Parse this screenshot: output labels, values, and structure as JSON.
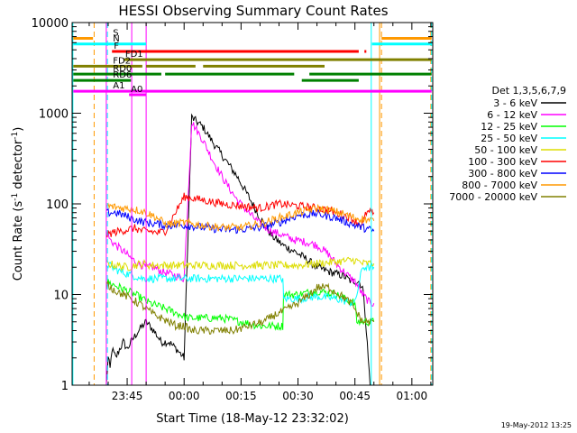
{
  "chart_data": {
    "type": "line",
    "title": "HESSI Observing Summary Count Rates",
    "xlabel": "Start Time (18-May-12 23:32:02)",
    "ylabel": "Count Rate (s⁻¹ detector⁻¹)",
    "ylabel_main": "Count Rate (s",
    "ylabel_exp1": "-1",
    "ylabel_mid": " detector",
    "ylabel_exp2": "-1",
    "ylabel_end": ")",
    "yscale": "log",
    "ylim": [
      1,
      10000
    ],
    "xlim": [
      -14.5,
      80.5
    ],
    "x_units": "minutes relative to 23:45 (18-May-12)",
    "x_ticks": [
      {
        "v": 0,
        "label": "23:45"
      },
      {
        "v": 15,
        "label": "00:00"
      },
      {
        "v": 30,
        "label": "00:15"
      },
      {
        "v": 45,
        "label": "00:30"
      },
      {
        "v": 60,
        "label": "00:45"
      },
      {
        "v": 75,
        "label": "01:00"
      }
    ],
    "y_ticks": [
      {
        "v": 1,
        "label": "1"
      },
      {
        "v": 10,
        "label": "10"
      },
      {
        "v": 100,
        "label": "100"
      },
      {
        "v": 1000,
        "label": "1000"
      },
      {
        "v": 10000,
        "label": "10000"
      }
    ],
    "legend": {
      "title": "Det 1,3,5,6,7,9",
      "placement": "right"
    },
    "series": [
      {
        "name": "3 - 6 keV",
        "color": "#000000",
        "x": [
          -5.5,
          -5,
          -4.5,
          -4,
          -3,
          -2,
          -1,
          0,
          1,
          3,
          5,
          7,
          9,
          11,
          13,
          15,
          17,
          20,
          23,
          26,
          29,
          32,
          35,
          38,
          41,
          44,
          47,
          50,
          53,
          55,
          57,
          58,
          59,
          60,
          61,
          62,
          62.5,
          63,
          63.5,
          64
        ],
        "y": [
          1,
          2,
          1.5,
          2.5,
          2,
          2.5,
          3,
          2.5,
          3,
          4,
          5,
          4,
          3,
          3,
          2.5,
          2,
          900,
          700,
          450,
          300,
          200,
          120,
          70,
          45,
          35,
          30,
          25,
          20,
          18,
          17,
          16,
          15,
          14,
          14,
          14,
          12,
          8,
          4,
          2,
          1
        ]
      },
      {
        "name": "6 - 12 keV",
        "color": "#ff00ff",
        "x": [
          -5.5,
          -5,
          -4.5,
          -3,
          -1,
          1,
          3,
          5,
          7,
          9,
          11,
          13,
          15,
          17,
          20,
          23,
          26,
          29,
          32,
          35,
          38,
          41,
          44,
          47,
          50,
          53,
          55,
          57,
          59,
          60,
          61,
          62,
          63,
          64,
          65
        ],
        "y": [
          50,
          45,
          40,
          35,
          30,
          25,
          22,
          20,
          20,
          18,
          17,
          16,
          15,
          800,
          500,
          280,
          170,
          110,
          80,
          60,
          50,
          45,
          40,
          38,
          35,
          28,
          22,
          18,
          15,
          14,
          12,
          10,
          9,
          8,
          8
        ]
      },
      {
        "name": "12 - 25 keV",
        "color": "#00ff00",
        "x": [
          -5.5,
          -4,
          -2,
          0,
          2,
          4,
          6,
          8,
          10,
          12,
          14,
          16,
          20,
          25,
          30,
          35,
          39,
          41,
          41.2,
          45,
          50,
          55,
          60,
          60.5,
          61,
          63,
          65
        ],
        "y": [
          14,
          13,
          12,
          11,
          10,
          9,
          8,
          7.5,
          7,
          6.5,
          6,
          5.5,
          5.5,
          5.5,
          5,
          4.5,
          4.5,
          4.5,
          10,
          10,
          11,
          10,
          8,
          5,
          5,
          5,
          5
        ]
      },
      {
        "name": "25 - 50 keV",
        "color": "#00ffff",
        "x": [
          -5.5,
          -4,
          -2,
          0,
          2,
          4,
          6,
          10,
          15,
          20,
          25,
          30,
          35,
          39,
          41,
          41.2,
          45,
          50,
          55,
          60,
          62,
          65
        ],
        "y": [
          22,
          20,
          18,
          17,
          16,
          15,
          15,
          15,
          15,
          15,
          15,
          15,
          15,
          15,
          15,
          9,
          9,
          9.5,
          9,
          8,
          20,
          20
        ]
      },
      {
        "name": "50 - 100 keV",
        "color": "#dddd00",
        "x": [
          -5.5,
          -3,
          0,
          2,
          4,
          6,
          8,
          10,
          15,
          20,
          25,
          30,
          35,
          39,
          41,
          45,
          50,
          55,
          60,
          62,
          65
        ],
        "y": [
          22,
          21,
          20,
          21,
          22,
          21,
          21,
          21,
          21,
          21,
          21,
          21,
          21,
          21,
          21,
          21,
          22,
          23,
          24,
          22,
          22
        ]
      },
      {
        "name": "100 - 300 keV",
        "color": "#ff0000",
        "x": [
          -5.5,
          -4,
          -2,
          0,
          2,
          4,
          6,
          8,
          10,
          15,
          20,
          25,
          30,
          35,
          40,
          45,
          50,
          53,
          55,
          57,
          59,
          60,
          61,
          62,
          63,
          65
        ],
        "y": [
          45,
          48,
          50,
          52,
          54,
          50,
          50,
          48,
          50,
          120,
          110,
          100,
          95,
          90,
          100,
          95,
          90,
          85,
          80,
          75,
          70,
          65,
          60,
          60,
          80,
          80
        ]
      },
      {
        "name": "300 - 800 keV",
        "color": "#0000ff",
        "x": [
          -5.5,
          -3,
          -1,
          1,
          3,
          5,
          8,
          10,
          15,
          20,
          25,
          30,
          35,
          40,
          45,
          50,
          55,
          60,
          62,
          65
        ],
        "y": [
          80,
          80,
          75,
          70,
          65,
          62,
          60,
          58,
          58,
          55,
          52,
          52,
          55,
          62,
          75,
          78,
          70,
          58,
          55,
          50
        ]
      },
      {
        "name": "800 - 7000 keV",
        "color": "#ff9900",
        "x": [
          -5.5,
          -3,
          -1,
          1,
          3,
          5,
          8,
          10,
          12,
          15,
          20,
          25,
          30,
          35,
          40,
          45,
          50,
          55,
          58,
          60,
          62,
          65
        ],
        "y": [
          95,
          92,
          90,
          88,
          85,
          80,
          70,
          60,
          60,
          62,
          58,
          55,
          55,
          60,
          70,
          80,
          90,
          82,
          75,
          70,
          68,
          65
        ]
      },
      {
        "name": "7000 - 20000 keV",
        "color": "#808000",
        "x": [
          -5.5,
          -3,
          -1,
          1,
          3,
          5,
          7,
          9,
          11,
          13,
          15,
          17,
          20,
          24,
          28,
          32,
          36,
          39,
          41,
          45,
          48,
          50,
          53,
          56,
          59,
          62,
          65
        ],
        "y": [
          13,
          11,
          10,
          9,
          8,
          7,
          6,
          5.5,
          5,
          4.5,
          4.5,
          4,
          4,
          4,
          4,
          4.5,
          5,
          6,
          6.5,
          8,
          10,
          12,
          12,
          10,
          8,
          5,
          5
        ]
      }
    ],
    "flags": [
      {
        "label": "S",
        "color": "#ff9900",
        "y": 6700,
        "segments": [
          [
            -14.2,
            -9
          ],
          [
            67,
            80.2
          ]
        ]
      },
      {
        "label": "N",
        "color": "#00ffff",
        "y": 5800,
        "segments": [
          [
            -14.2,
            5
          ],
          [
            64.5,
            80.2
          ]
        ]
      },
      {
        "label": "F",
        "color": "#ff0000",
        "y": 4800,
        "segments": [
          [
            -4,
            61
          ],
          [
            62.5,
            63
          ]
        ]
      },
      {
        "label": "FD1",
        "color": "#808000",
        "y": 3900,
        "segments": [
          [
            -1,
            80.2
          ]
        ]
      },
      {
        "label": "FD2",
        "color": "#808000",
        "y": 3300,
        "segments": [
          [
            -14.2,
            4
          ],
          [
            5,
            18
          ],
          [
            20,
            52
          ]
        ]
      },
      {
        "label": "RD0",
        "color": "#008000",
        "y": 2700,
        "segments": [
          [
            -14.2,
            9
          ],
          [
            10,
            44
          ],
          [
            48,
            80.2
          ]
        ]
      },
      {
        "label": "RD6",
        "color": "#008000",
        "y": 2300,
        "segments": [
          [
            -14.2,
            1
          ],
          [
            46,
            61
          ]
        ]
      },
      {
        "label": "A1",
        "color": "#ff00ff",
        "y": 1750,
        "segments": [
          [
            -14.2,
            80.2
          ]
        ]
      },
      {
        "label": "A0",
        "color": "#ff00ff",
        "y": 1600,
        "segments": [
          [
            0.5,
            5
          ]
        ]
      }
    ],
    "vlines": [
      {
        "x": -14.3,
        "color": "#00ffff",
        "dashed": false
      },
      {
        "x": -8.7,
        "color": "#ff9900",
        "dashed": true
      },
      {
        "x": -5.5,
        "color": "#ff00ff",
        "dashed": false
      },
      {
        "x": -5.2,
        "color": "#00ffff",
        "dashed": true
      },
      {
        "x": 1.2,
        "color": "#ff00ff",
        "dashed": false
      },
      {
        "x": 5.0,
        "color": "#ff00ff",
        "dashed": false
      },
      {
        "x": 64.3,
        "color": "#00ffff",
        "dashed": false
      },
      {
        "x": 66.5,
        "color": "#ff9900",
        "dashed": false
      },
      {
        "x": 67.0,
        "color": "#ff9900",
        "dashed": true
      },
      {
        "x": 80.0,
        "color": "#ff9900",
        "dashed": true
      },
      {
        "x": 80.2,
        "color": "#00ffff",
        "dashed": true
      }
    ]
  },
  "footer": {
    "date_stamp": "19-May-2012 13:25"
  }
}
